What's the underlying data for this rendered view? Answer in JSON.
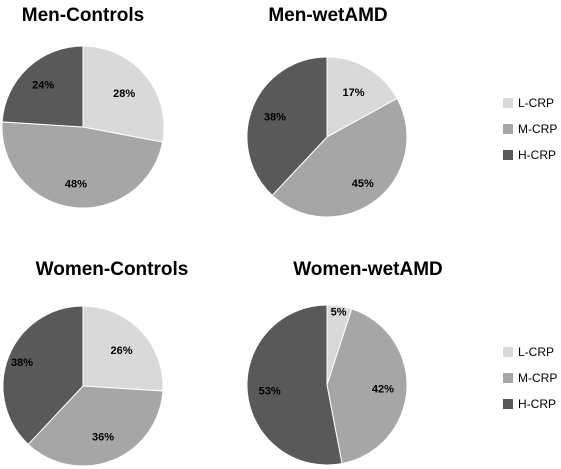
{
  "colors": {
    "L-CRP": "#d9d9d9",
    "M-CRP": "#a6a6a6",
    "H-CRP": "#595959"
  },
  "legend": {
    "items": [
      "L-CRP",
      "M-CRP",
      "H-CRP"
    ]
  },
  "chart_data": [
    {
      "type": "pie",
      "title": "Men-Controls",
      "categories": [
        "L-CRP",
        "M-CRP",
        "H-CRP"
      ],
      "values": [
        28,
        48,
        24
      ],
      "labels": [
        "28%",
        "48%",
        "24%"
      ],
      "legend": false
    },
    {
      "type": "pie",
      "title": "Men-wetAMD",
      "categories": [
        "L-CRP",
        "M-CRP",
        "H-CRP"
      ],
      "values": [
        17,
        45,
        38
      ],
      "labels": [
        "17%",
        "45%",
        "38%"
      ],
      "legend": true,
      "legend_position": "right"
    },
    {
      "type": "pie",
      "title": "Women-Controls",
      "categories": [
        "L-CRP",
        "M-CRP",
        "H-CRP"
      ],
      "values": [
        26,
        36,
        38
      ],
      "labels": [
        "26%",
        "36%",
        "38%"
      ],
      "legend": false
    },
    {
      "type": "pie",
      "title": "Women-wetAMD",
      "categories": [
        "L-CRP",
        "M-CRP",
        "H-CRP"
      ],
      "values": [
        5,
        42,
        53
      ],
      "labels": [
        "5%",
        "42%",
        "53%"
      ],
      "legend": true,
      "legend_position": "right"
    }
  ]
}
